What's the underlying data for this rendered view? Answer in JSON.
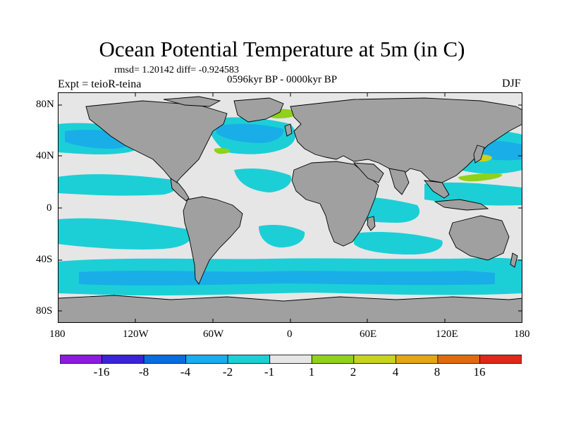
{
  "title": "Ocean Potential Temperature at 5m (in C)",
  "stats": "rmsd= 1.20142 diff= -0.924583",
  "period": "0596kyr BP - 0000kyr BP",
  "experiment": "Expt = teioR-teina",
  "season": "DJF",
  "colors": {
    "land": "#a0a0a0",
    "neutral": "#e6e6e6",
    "cyan": "#1ccfd6",
    "lightblue": "#19aee8",
    "green": "#8fd11b",
    "yellowgreen": "#c7d31c"
  },
  "y_axis": {
    "ticks": [
      "80N",
      "40N",
      "0",
      "40S",
      "80S"
    ]
  },
  "x_axis": {
    "ticks": [
      "180",
      "120W",
      "60W",
      "0",
      "60E",
      "120E",
      "180"
    ]
  },
  "colorbar": {
    "colors": [
      "#8a1be0",
      "#3b23d9",
      "#0d6ae0",
      "#19aee8",
      "#1ccfd6",
      "#e6e6e6",
      "#8fd11b",
      "#c7d31c",
      "#e0a814",
      "#e06a14",
      "#e0281a"
    ],
    "labels": [
      "-16",
      "-8",
      "-4",
      "-2",
      "-1",
      "1",
      "2",
      "4",
      "8",
      "16"
    ]
  }
}
